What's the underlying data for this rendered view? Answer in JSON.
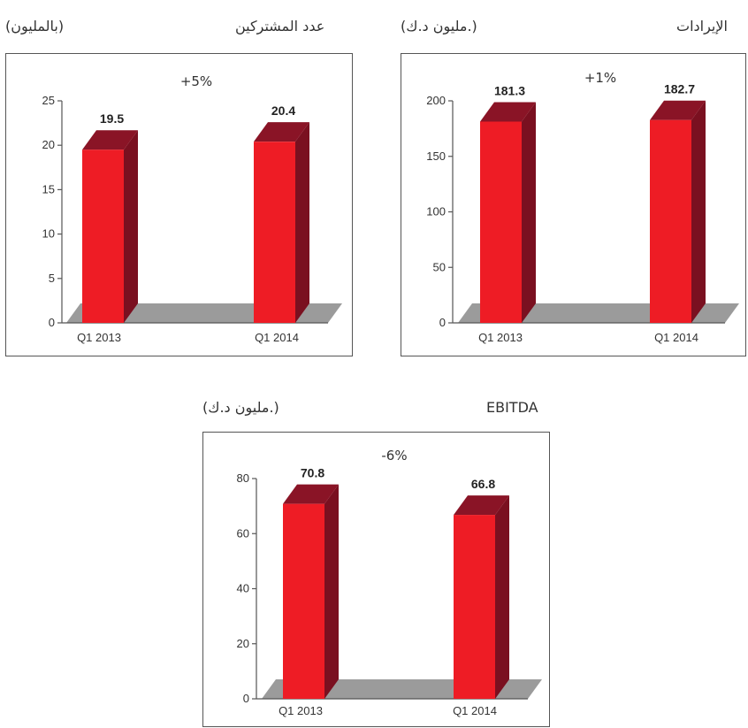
{
  "colors": {
    "bar_front": "#ee1c25",
    "bar_side": "#7a1020",
    "bar_top": "#8a1426",
    "floor": "#9b9b9b",
    "axis": "#555555"
  },
  "chart_data": [
    {
      "type": "bar",
      "title": "عدد المشتركين",
      "unit": "(بالمليون)",
      "change": "+5%",
      "categories": [
        "Q1 2013",
        "Q1 2014"
      ],
      "values": [
        19.5,
        20.4
      ],
      "value_labels": [
        "19.5",
        "20.4"
      ],
      "ylim": [
        0,
        25
      ],
      "yticks": [
        "0",
        "5",
        "10",
        "15",
        "20",
        "25"
      ],
      "ytick_values": [
        0,
        5,
        10,
        15,
        20,
        25
      ],
      "grid": false,
      "legend": "none"
    },
    {
      "type": "bar",
      "title": "الإيرادات",
      "unit": "(مليون د.ك.)",
      "change": "+1%",
      "categories": [
        "Q1 2013",
        "Q1 2014"
      ],
      "values": [
        181.3,
        182.7
      ],
      "value_labels": [
        "181.3",
        "182.7"
      ],
      "ylim": [
        0,
        200
      ],
      "yticks": [
        "0",
        "50",
        "100",
        "150",
        "200"
      ],
      "ytick_values": [
        0,
        50,
        100,
        150,
        200
      ],
      "grid": false,
      "legend": "none"
    },
    {
      "type": "bar",
      "title": "EBITDA",
      "unit": "(مليون د.ك.)",
      "change": "-6%",
      "categories": [
        "Q1 2013",
        "Q1 2014"
      ],
      "values": [
        70.8,
        66.8
      ],
      "value_labels": [
        "70.8",
        "66.8"
      ],
      "ylim": [
        0,
        80
      ],
      "yticks": [
        "0",
        "20",
        "40",
        "60",
        "80"
      ],
      "ytick_values": [
        0,
        20,
        40,
        60,
        80
      ],
      "grid": false,
      "legend": "none"
    }
  ]
}
